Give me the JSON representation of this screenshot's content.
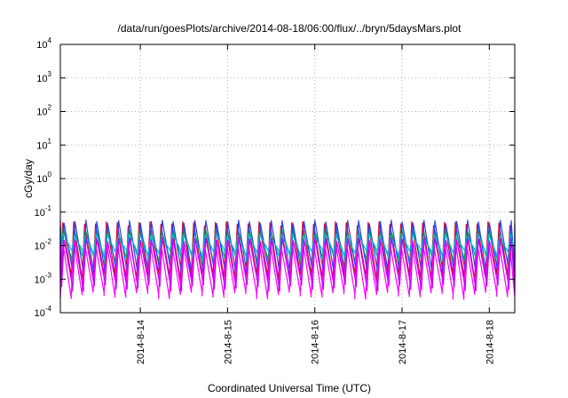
{
  "chart_data": {
    "type": "line",
    "title": "/data/run/goesPlots/archive/2014-08-18/06:00/flux/../bryn/5daysMars.plot",
    "xlabel": "Coordinated Universal Time (UTC)",
    "ylabel": "cGy/day",
    "yscale": "log",
    "ylim": [
      0.0001,
      10000
    ],
    "xlim": [
      "2014-08-13T02:00",
      "2014-08-18T07:00"
    ],
    "y_ticks": [
      {
        "base": "10",
        "exp": "-4",
        "value": 0.0001
      },
      {
        "base": "10",
        "exp": "-3",
        "value": 0.001
      },
      {
        "base": "10",
        "exp": "-2",
        "value": 0.01
      },
      {
        "base": "10",
        "exp": "-1",
        "value": 0.1
      },
      {
        "base": "10",
        "exp": "0",
        "value": 1
      },
      {
        "base": "10",
        "exp": "1",
        "value": 10
      },
      {
        "base": "10",
        "exp": "2",
        "value": 100
      },
      {
        "base": "10",
        "exp": "3",
        "value": 1000
      },
      {
        "base": "10",
        "exp": "4",
        "value": 10000
      }
    ],
    "x_ticks": [
      {
        "label": "2014-8-14",
        "value": "2014-08-14T00:00"
      },
      {
        "label": "2014-8-15",
        "value": "2014-08-15T00:00"
      },
      {
        "label": "2014-8-16",
        "value": "2014-08-16T00:00"
      },
      {
        "label": "2014-8-17",
        "value": "2014-08-17T00:00"
      },
      {
        "label": "2014-8-18",
        "value": "2014-08-18T00:00"
      }
    ],
    "grid": true,
    "legend": "none",
    "period_hours": 3,
    "series": [
      {
        "color": "#e0002a",
        "peak_value": 0.045,
        "trough_value": 0.0012
      },
      {
        "color": "#00b050",
        "peak_value": 0.03,
        "trough_value": 0.004
      },
      {
        "color": "#2040ff",
        "peak_value": 0.05,
        "trough_value": 0.0015
      },
      {
        "color": "#ff00ff",
        "peak_value": 0.012,
        "trough_value": 0.00035
      },
      {
        "color": "#00b8d0",
        "peak_value": 0.02,
        "trough_value": 0.006
      },
      {
        "color": "#c000ff",
        "peak_value": 0.015,
        "trough_value": 0.0006
      }
    ]
  }
}
